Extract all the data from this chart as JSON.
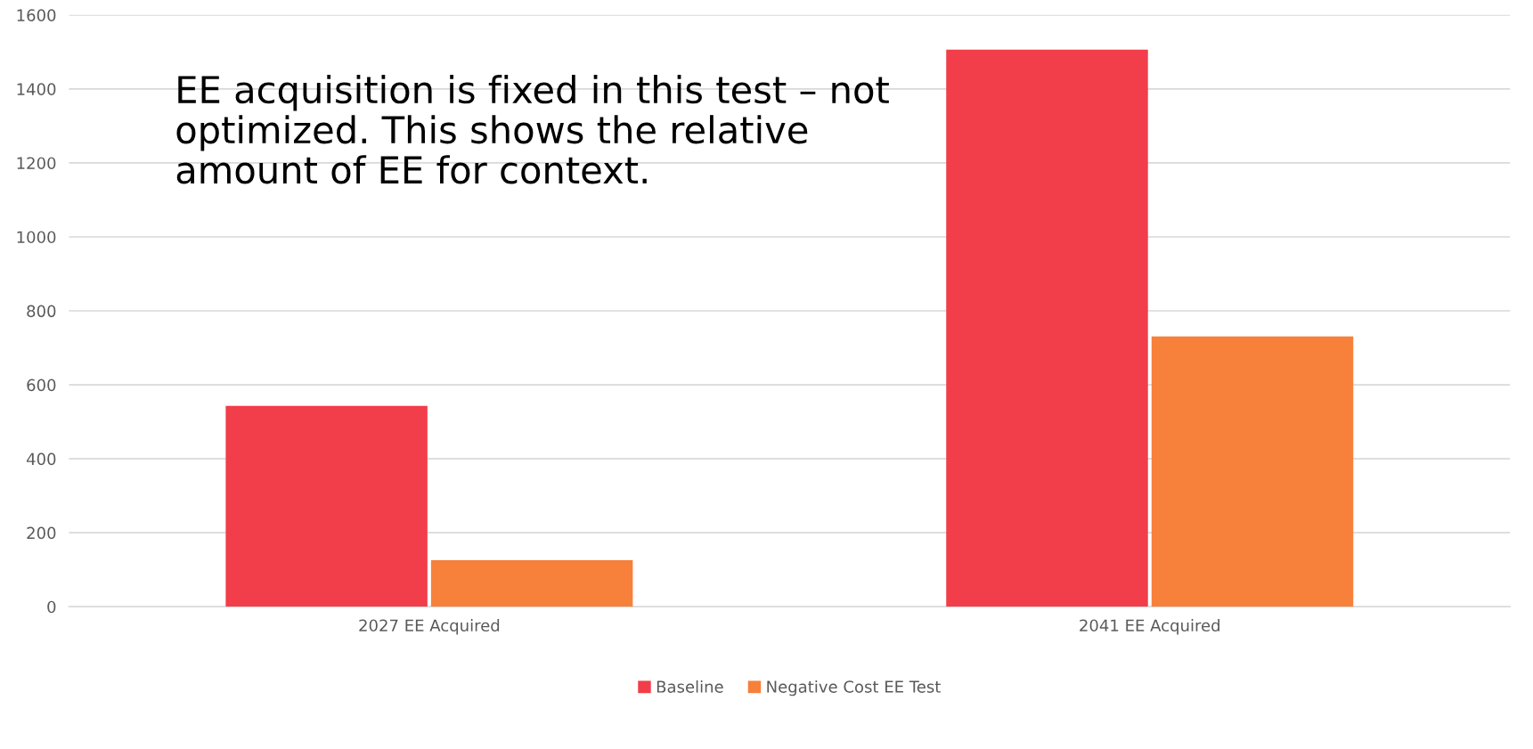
{
  "chart_data": {
    "type": "bar",
    "categories": [
      "2027 EE Acquired",
      "2041 EE Acquired"
    ],
    "series": [
      {
        "name": "Baseline",
        "color": "#f23d4a",
        "values": [
          543,
          1506
        ]
      },
      {
        "name": "Negative Cost EE Test",
        "color": "#f7803a",
        "values": [
          126,
          731
        ]
      }
    ],
    "ylim": [
      0,
      1600
    ],
    "yticks": [
      0,
      200,
      400,
      600,
      800,
      1000,
      1200,
      1400,
      1600
    ],
    "grid": "y",
    "legend": "bottom",
    "annotations": [
      "EE acquisition is fixed in this test – not optimized. This shows the relative amount of EE for context."
    ]
  }
}
